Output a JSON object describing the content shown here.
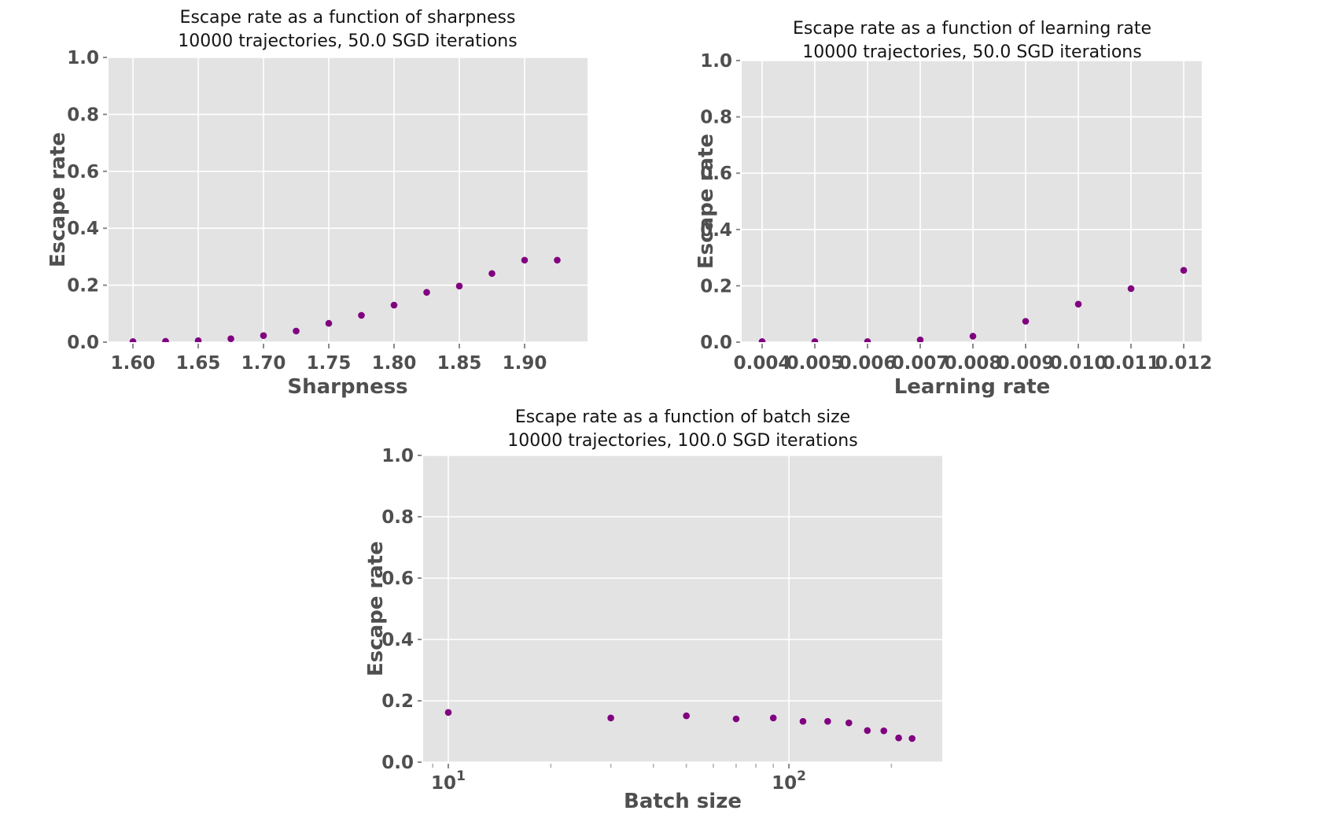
{
  "page": {
    "background": "#ffffff"
  },
  "style": {
    "plot_bg": "#e3e3e3",
    "grid_color": "#ffffff",
    "point_color": "#800080",
    "major_tick_color": "#8a8a8a",
    "minor_tick_color": "#b0b0b0",
    "tick_label_color": "#4f4f4f",
    "title_color": "#141414"
  },
  "chart_data": [
    {
      "id": "sharpness",
      "type": "scatter",
      "title": "Escape rate as a function of sharpness",
      "subtitle": "10000 trajectories, 50.0 SGD iterations",
      "xlabel": "Sharpness",
      "ylabel": "Escape rate",
      "xscale": "linear",
      "xlim": [
        1.5813,
        1.9482
      ],
      "ylim": [
        0,
        1
      ],
      "grid": true,
      "xticks": {
        "values": [
          1.6,
          1.65,
          1.7,
          1.75,
          1.8,
          1.85,
          1.9
        ],
        "labels": [
          "1.60",
          "1.65",
          "1.70",
          "1.75",
          "1.80",
          "1.85",
          "1.90"
        ]
      },
      "yticks": {
        "values": [
          0,
          0.2,
          0.4,
          0.6,
          0.8,
          1.0
        ],
        "labels": [
          "0.0",
          "0.2",
          "0.4",
          "0.6",
          "0.8",
          "1.0"
        ]
      },
      "minor_xticks": [],
      "x": [
        1.6,
        1.625,
        1.65,
        1.675,
        1.7,
        1.725,
        1.75,
        1.775,
        1.8,
        1.825,
        1.85,
        1.875,
        1.9,
        1.925
      ],
      "y": [
        0.002,
        0.003,
        0.005,
        0.012,
        0.023,
        0.039,
        0.066,
        0.094,
        0.13,
        0.175,
        0.197,
        0.241,
        0.288,
        0.288
      ]
    },
    {
      "id": "learning-rate",
      "type": "scatter",
      "title": "Escape rate as a function of learning rate",
      "subtitle": "10000 trajectories, 50.0 SGD iterations",
      "xlabel": "Learning rate",
      "ylabel": "Escape rate",
      "xscale": "linear",
      "xlim": [
        0.003612,
        0.012343
      ],
      "ylim": [
        0,
        1
      ],
      "grid": true,
      "xticks": {
        "values": [
          0.004,
          0.005,
          0.006,
          0.007,
          0.008,
          0.009,
          0.01,
          0.011,
          0.012
        ],
        "labels": [
          "0.004",
          "0.005",
          "0.006",
          "0.007",
          "0.008",
          "0.009",
          "0.010",
          "0.011",
          "0.012"
        ]
      },
      "yticks": {
        "values": [
          0,
          0.2,
          0.4,
          0.6,
          0.8,
          1.0
        ],
        "labels": [
          "0.0",
          "0.2",
          "0.4",
          "0.6",
          "0.8",
          "1.0"
        ]
      },
      "minor_xticks": [],
      "x": [
        0.004,
        0.005,
        0.006,
        0.007,
        0.008,
        0.009,
        0.01,
        0.011,
        0.012
      ],
      "y": [
        0.002,
        0.002,
        0.002,
        0.008,
        0.021,
        0.074,
        0.135,
        0.19,
        0.255
      ]
    },
    {
      "id": "batch-size",
      "type": "scatter",
      "title": "Escape rate as a function of batch size",
      "subtitle": "10000 trajectories, 100.0 SGD iterations",
      "xlabel": "Batch size",
      "ylabel": "Escape rate",
      "xscale": "log",
      "xlim": [
        8.436,
        282.0
      ],
      "ylim": [
        0,
        1
      ],
      "grid": true,
      "xticks": {
        "values": [
          10,
          100
        ],
        "labels": [
          "10^1",
          "10^2"
        ]
      },
      "yticks": {
        "values": [
          0,
          0.2,
          0.4,
          0.6,
          0.8,
          1.0
        ],
        "labels": [
          "0.0",
          "0.2",
          "0.4",
          "0.6",
          "0.8",
          "1.0"
        ]
      },
      "minor_xticks": [
        9,
        20,
        30,
        40,
        50,
        60,
        70,
        80,
        90,
        200
      ],
      "x": [
        10,
        30,
        50,
        70,
        90,
        110,
        130,
        150,
        170,
        190,
        210,
        230
      ],
      "y": [
        0.162,
        0.144,
        0.151,
        0.141,
        0.144,
        0.133,
        0.133,
        0.128,
        0.103,
        0.102,
        0.079,
        0.077
      ]
    }
  ]
}
